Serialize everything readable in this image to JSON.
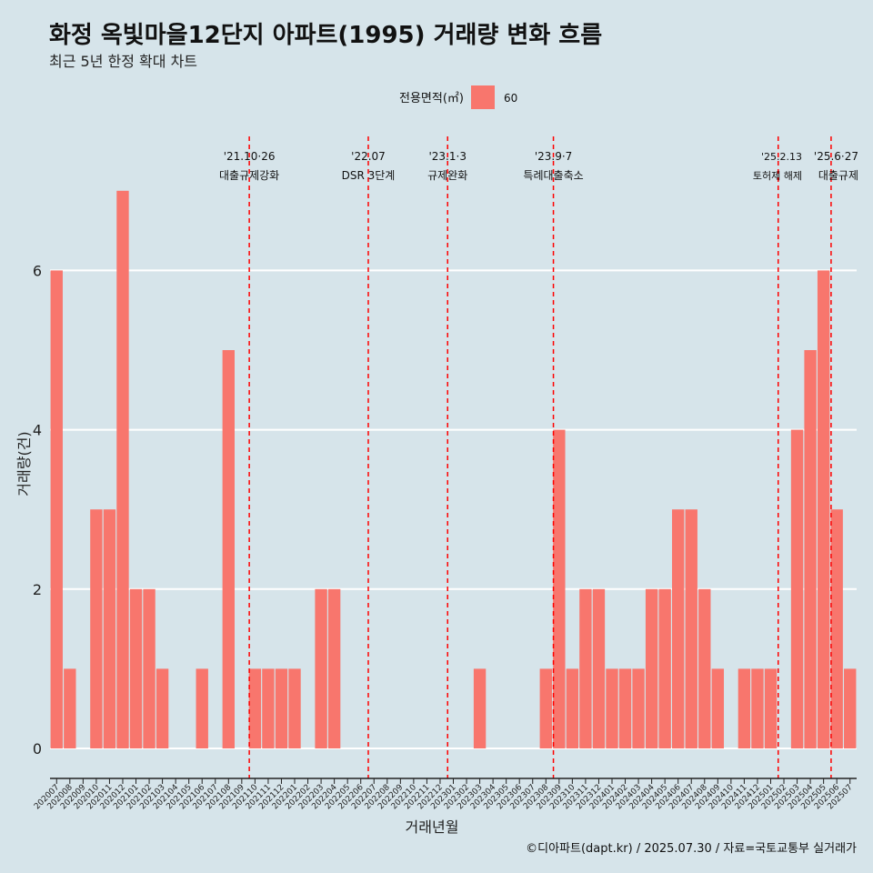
{
  "header": {
    "title": "화정 옥빛마을12단지 아파트(1995) 거래량 변화 흐름",
    "subtitle": "최근 5년 한정 확대 차트"
  },
  "caption": "©디아파트(dapt.kr) / 2025.07.30 / 자료=국토교통부 실거래가",
  "colors": {
    "background": "#d6e4ea",
    "bar": "#f8766d",
    "event_line": "#ff0000",
    "grid": "#ffffff"
  },
  "chart_data": {
    "type": "bar",
    "xlabel": "거래년월",
    "ylabel": "거래량(건)",
    "ylim": [
      0,
      7.3
    ],
    "yticks": [
      0,
      2,
      4,
      6
    ],
    "legend": {
      "title": "전용면적(㎡)",
      "placement": "top",
      "entries": [
        "60"
      ]
    },
    "categories": [
      "202007",
      "202008",
      "202009",
      "202010",
      "202011",
      "202012",
      "202101",
      "202102",
      "202103",
      "202104",
      "202105",
      "202106",
      "202107",
      "202108",
      "202109",
      "202110",
      "202111",
      "202112",
      "202201",
      "202202",
      "202203",
      "202204",
      "202205",
      "202206",
      "202207",
      "202208",
      "202209",
      "202210",
      "202211",
      "202212",
      "202301",
      "202302",
      "202303",
      "202304",
      "202305",
      "202306",
      "202307",
      "202308",
      "202309",
      "202310",
      "202311",
      "202312",
      "202401",
      "202402",
      "202403",
      "202404",
      "202405",
      "202406",
      "202407",
      "202408",
      "202409",
      "202410",
      "202411",
      "202412",
      "202501",
      "202502",
      "202503",
      "202504",
      "202505",
      "202506",
      "202507"
    ],
    "series": [
      {
        "name": "60",
        "values": [
          6,
          1,
          0,
          3,
          3,
          7,
          2,
          2,
          1,
          0,
          0,
          1,
          0,
          5,
          0,
          1,
          1,
          1,
          1,
          0,
          2,
          2,
          0,
          0,
          0,
          0,
          0,
          0,
          0,
          0,
          0,
          0,
          1,
          0,
          0,
          0,
          0,
          1,
          4,
          1,
          2,
          2,
          1,
          1,
          1,
          2,
          2,
          3,
          3,
          2,
          1,
          0,
          1,
          1,
          1,
          0,
          4,
          5,
          6,
          3,
          1
        ]
      }
    ],
    "events": [
      {
        "x": "202110",
        "date": "'21.10·26",
        "label": "대출규제강화"
      },
      {
        "x": "202207",
        "date": "'22.07",
        "label": "DSR 3단계"
      },
      {
        "x": "202301",
        "date": "'23.1·3",
        "label": "규제완화"
      },
      {
        "x": "202309",
        "date": "'23.9·7",
        "label": "특례대출축소"
      },
      {
        "x": "202502",
        "date": "'25.2.13",
        "label": "토허제 해제"
      },
      {
        "x": "202506",
        "date": "'25.6·27",
        "label": "대출규제"
      }
    ]
  }
}
